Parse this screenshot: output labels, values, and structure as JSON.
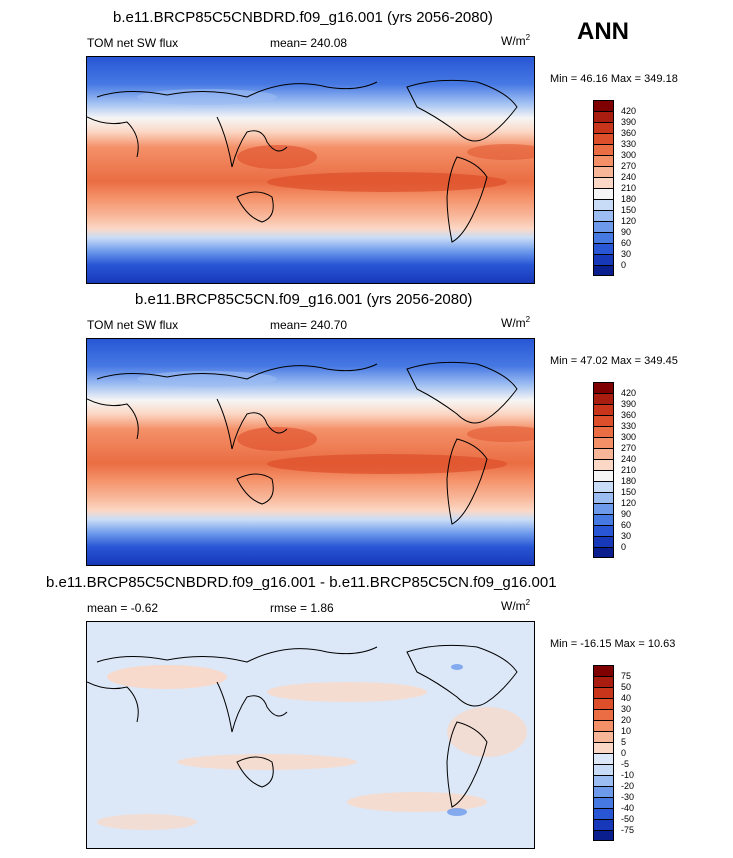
{
  "season": "ANN",
  "panels": [
    {
      "title": "b.e11.BRCP85C5CNBDRD.f09_g16.001 (yrs 2056-2080)",
      "left_label": "TOM net SW flux",
      "center_label": "mean= 240.08",
      "units": "W/m",
      "units_sup": "2",
      "minmax": "Min =  46.16 Max = 349.18",
      "type": "field"
    },
    {
      "title": "b.e11.BRCP85C5CN.f09_g16.001 (yrs 2056-2080)",
      "left_label": "TOM net SW flux",
      "center_label": "mean= 240.70",
      "units": "W/m",
      "units_sup": "2",
      "minmax": "Min =  47.02 Max = 349.45",
      "type": "field"
    },
    {
      "title": "b.e11.BRCP85C5CNBDRD.f09_g16.001 - b.e11.BRCP85C5CN.f09_g16.001",
      "left_label": "mean =  -0.62",
      "center_label": "rmse =   1.86",
      "units": "W/m",
      "units_sup": "2",
      "minmax": "Min = -16.15 Max =  10.63",
      "type": "diff"
    }
  ],
  "colorbars": {
    "field": {
      "labels": [
        "420",
        "390",
        "360",
        "330",
        "300",
        "270",
        "240",
        "210",
        "180",
        "150",
        "120",
        "90",
        "60",
        "30",
        "0"
      ],
      "colors": [
        "#7f0000",
        "#a81d0f",
        "#c8351a",
        "#dd4f2a",
        "#ea6d43",
        "#f49068",
        "#f8b698",
        "#fbd8c6",
        "#f5f5f5",
        "#c9dcf7",
        "#9cbdf2",
        "#6d9aeb",
        "#4779e3",
        "#2856d5",
        "#1738b8",
        "#0b1e8e"
      ]
    },
    "diff": {
      "labels": [
        "75",
        "50",
        "40",
        "30",
        "20",
        "10",
        "5",
        "0",
        "-5",
        "-10",
        "-20",
        "-30",
        "-40",
        "-50",
        "-75"
      ],
      "colors": [
        "#7f0000",
        "#a81d0f",
        "#c8351a",
        "#dd4f2a",
        "#ea6d43",
        "#f49068",
        "#f8b698",
        "#fbd8c6",
        "#dce8f8",
        "#c9dcf7",
        "#9cbdf2",
        "#6d9aeb",
        "#4779e3",
        "#2856d5",
        "#1738b8",
        "#0b1e8e"
      ]
    }
  }
}
